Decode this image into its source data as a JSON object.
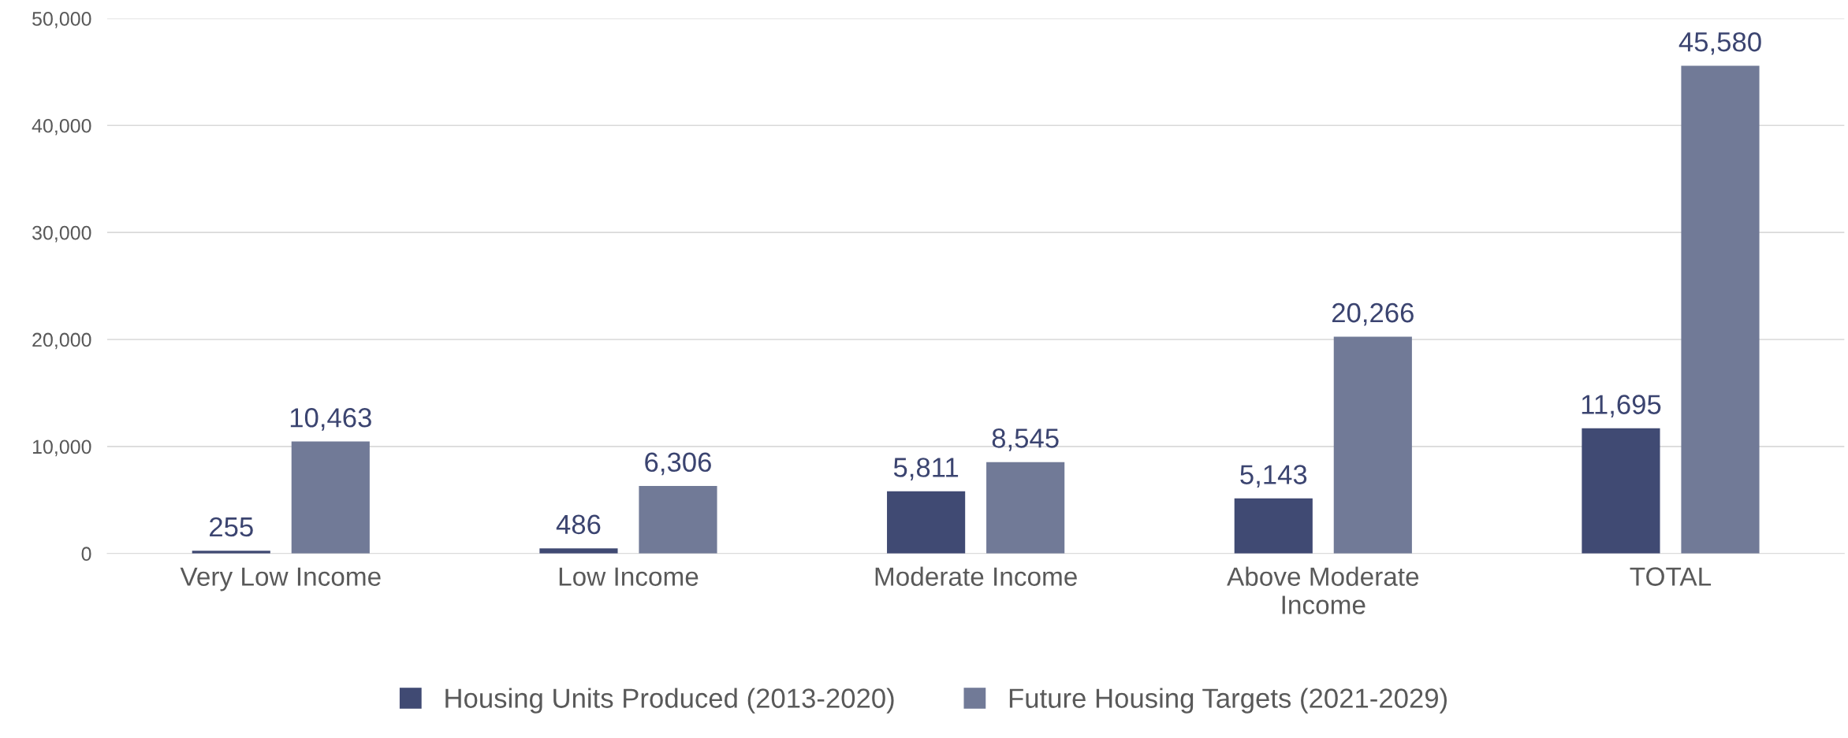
{
  "chart_data": {
    "type": "bar",
    "categories": [
      "Very Low Income",
      "Low Income",
      "Moderate Income",
      "Above Moderate\nIncome",
      "TOTAL"
    ],
    "series": [
      {
        "name": "Housing Units Produced (2013-2020)",
        "color": "#404a73",
        "values": [
          255,
          486,
          5811,
          5143,
          11695
        ],
        "value_labels": [
          "255",
          "486",
          "5,811",
          "5,143",
          "11,695"
        ]
      },
      {
        "name": "Future Housing Targets (2021-2029)",
        "color": "#717a97",
        "values": [
          10463,
          6306,
          8545,
          20266,
          45580
        ],
        "value_labels": [
          "10,463",
          "6,306",
          "8,545",
          "20,266",
          "45,580"
        ]
      }
    ],
    "ylim": [
      0,
      50000
    ],
    "yticks": [
      {
        "value": 0,
        "label": "0"
      },
      {
        "value": 10000,
        "label": "10,000"
      },
      {
        "value": 20000,
        "label": "20,000"
      },
      {
        "value": 30000,
        "label": "30,000"
      },
      {
        "value": 40000,
        "label": "40,000"
      },
      {
        "value": 50000,
        "label": "50,000"
      }
    ],
    "grid": "y",
    "legend": "bottom"
  }
}
